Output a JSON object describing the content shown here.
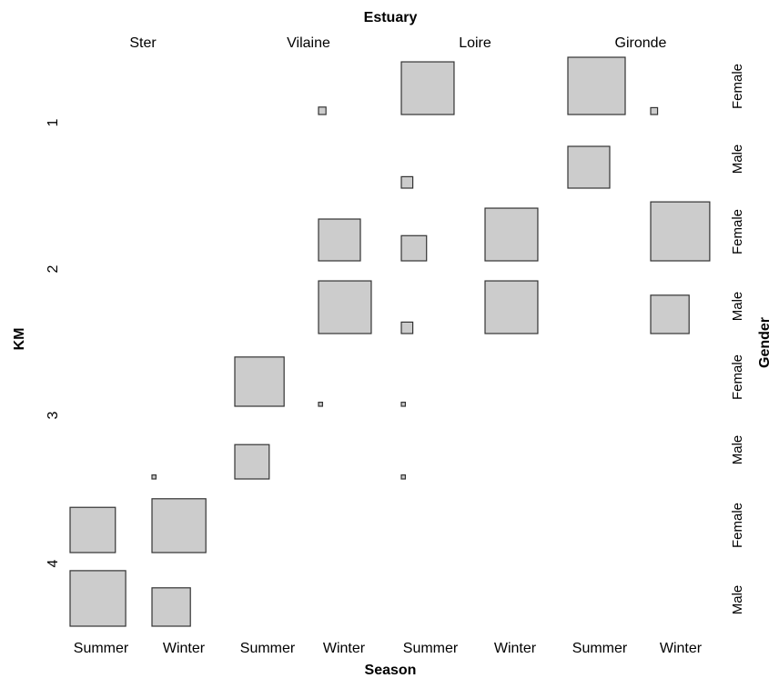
{
  "chart_data": {
    "type": "mosaic",
    "title": "Estuary",
    "xlabel": "Season",
    "ylabel": "KM",
    "right_label": "Gender",
    "estuaries": [
      "Ster",
      "Vilaine",
      "Loire",
      "Gironde"
    ],
    "seasons": [
      "Summer",
      "Winter"
    ],
    "km_levels": [
      "1",
      "2",
      "3",
      "4"
    ],
    "genders": [
      "Female",
      "Male"
    ],
    "cells": [
      {
        "estuary": "Vilaine",
        "season": "Winter",
        "km": "1",
        "gender": "Female",
        "size": 0.13
      },
      {
        "estuary": "Loire",
        "season": "Summer",
        "km": "1",
        "gender": "Female",
        "size": 0.92
      },
      {
        "estuary": "Gironde",
        "season": "Summer",
        "km": "1",
        "gender": "Female",
        "size": 1.0
      },
      {
        "estuary": "Gironde",
        "season": "Winter",
        "km": "1",
        "gender": "Female",
        "size": 0.12
      },
      {
        "estuary": "Loire",
        "season": "Summer",
        "km": "1",
        "gender": "Male",
        "size": 0.2
      },
      {
        "estuary": "Gironde",
        "season": "Summer",
        "km": "1",
        "gender": "Male",
        "size": 0.73
      },
      {
        "estuary": "Vilaine",
        "season": "Winter",
        "km": "2",
        "gender": "Female",
        "size": 0.73
      },
      {
        "estuary": "Loire",
        "season": "Summer",
        "km": "2",
        "gender": "Female",
        "size": 0.44
      },
      {
        "estuary": "Loire",
        "season": "Winter",
        "km": "2",
        "gender": "Female",
        "size": 0.92
      },
      {
        "estuary": "Gironde",
        "season": "Winter",
        "km": "2",
        "gender": "Female",
        "size": 1.03
      },
      {
        "estuary": "Vilaine",
        "season": "Winter",
        "km": "2",
        "gender": "Male",
        "size": 0.92
      },
      {
        "estuary": "Loire",
        "season": "Summer",
        "km": "2",
        "gender": "Male",
        "size": 0.2
      },
      {
        "estuary": "Loire",
        "season": "Winter",
        "km": "2",
        "gender": "Male",
        "size": 0.92
      },
      {
        "estuary": "Gironde",
        "season": "Winter",
        "km": "2",
        "gender": "Male",
        "size": 0.67
      },
      {
        "estuary": "Vilaine",
        "season": "Summer",
        "km": "3",
        "gender": "Female",
        "size": 0.86
      },
      {
        "estuary": "Vilaine",
        "season": "Winter",
        "km": "3",
        "gender": "Female",
        "size": 0.07
      },
      {
        "estuary": "Loire",
        "season": "Summer",
        "km": "3",
        "gender": "Female",
        "size": 0.07
      },
      {
        "estuary": "Vilaine",
        "season": "Summer",
        "km": "3",
        "gender": "Male",
        "size": 0.6
      },
      {
        "estuary": "Ster",
        "season": "Winter",
        "km": "3",
        "gender": "Male",
        "size": 0.07
      },
      {
        "estuary": "Loire",
        "season": "Summer",
        "km": "3",
        "gender": "Male",
        "size": 0.07
      },
      {
        "estuary": "Ster",
        "season": "Summer",
        "km": "4",
        "gender": "Female",
        "size": 0.79
      },
      {
        "estuary": "Ster",
        "season": "Winter",
        "km": "4",
        "gender": "Female",
        "size": 0.94
      },
      {
        "estuary": "Ster",
        "season": "Summer",
        "km": "4",
        "gender": "Male",
        "size": 0.97
      },
      {
        "estuary": "Ster",
        "season": "Winter",
        "km": "4",
        "gender": "Male",
        "size": 0.67
      }
    ],
    "colors": {
      "fill": "#cccccc",
      "stroke": "#333333"
    }
  }
}
